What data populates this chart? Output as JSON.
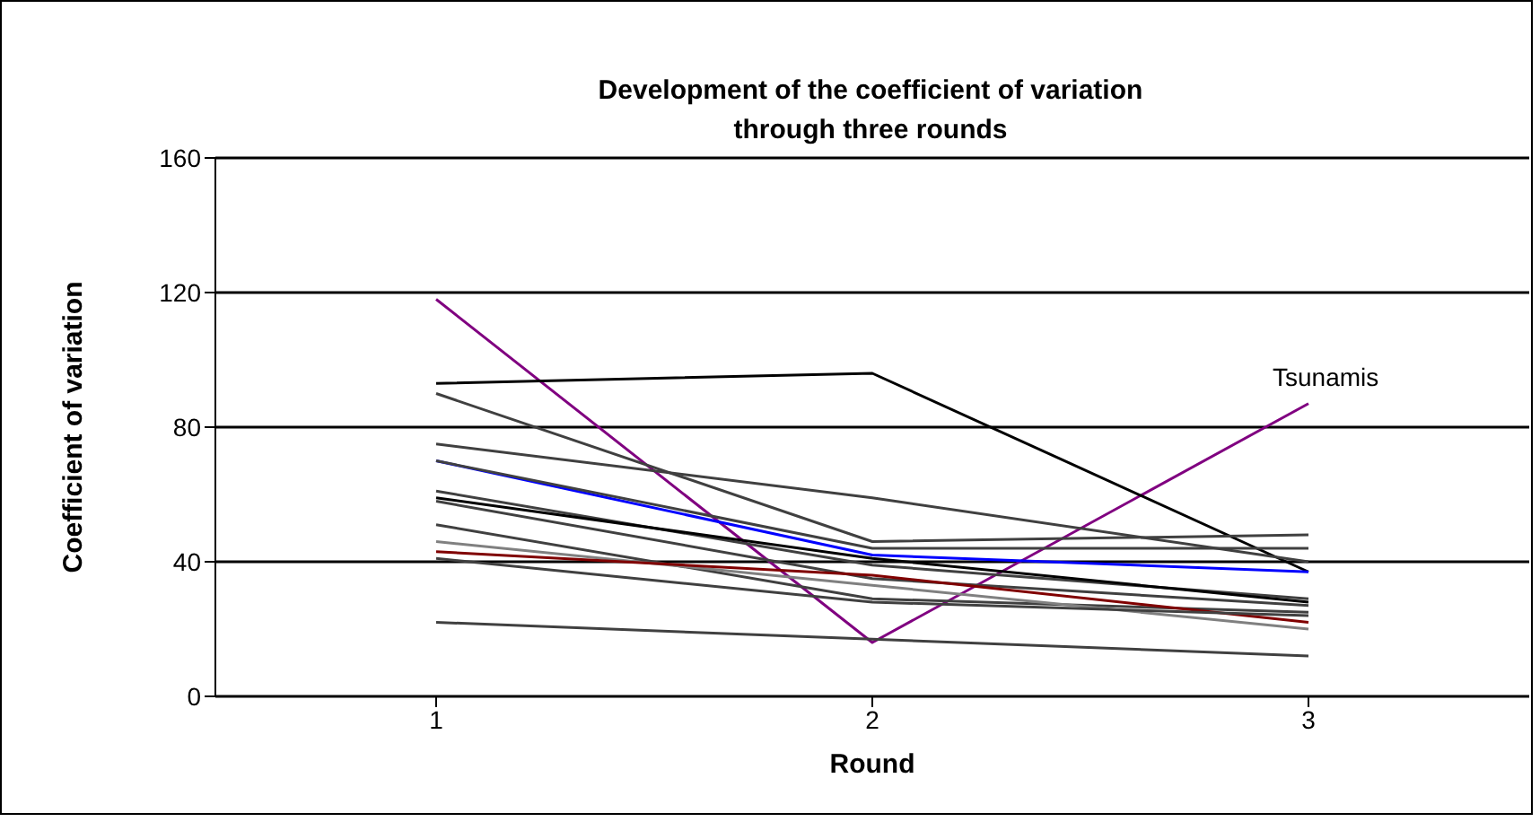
{
  "chart_data": {
    "type": "line",
    "title": "Development of the coefficient of variation\nthrough three rounds",
    "xlabel": "Round",
    "ylabel": "Coefficient of variation",
    "categories": [
      "1",
      "2",
      "3"
    ],
    "ylim": [
      0,
      160
    ],
    "yticks": [
      0,
      40,
      80,
      120,
      160
    ],
    "grid": "y",
    "legend": false,
    "marker": "none",
    "line_style": "solid",
    "series": [
      {
        "name": "Tsunamis",
        "color": "#800080",
        "values": [
          118,
          16,
          87
        ]
      },
      {
        "color": "#000000",
        "values": [
          93,
          96,
          37
        ]
      },
      {
        "color": "#404040",
        "values": [
          90,
          46,
          48
        ]
      },
      {
        "color": "#404040",
        "values": [
          75,
          59,
          40
        ]
      },
      {
        "color": "#0000ff",
        "values": [
          70,
          42,
          37
        ]
      },
      {
        "color": "#404040",
        "values": [
          70,
          44,
          44
        ]
      },
      {
        "color": "#404040",
        "values": [
          61,
          39,
          29
        ]
      },
      {
        "color": "#000000",
        "values": [
          59,
          41,
          28
        ]
      },
      {
        "color": "#404040",
        "values": [
          58,
          35,
          27
        ]
      },
      {
        "color": "#404040",
        "values": [
          51,
          29,
          25
        ]
      },
      {
        "color": "#808080",
        "values": [
          46,
          33,
          20
        ]
      },
      {
        "color": "#800000",
        "values": [
          43,
          36,
          22
        ]
      },
      {
        "color": "#404040",
        "values": [
          41,
          28,
          24
        ]
      },
      {
        "color": "#404040",
        "values": [
          22,
          17,
          12
        ]
      }
    ]
  }
}
